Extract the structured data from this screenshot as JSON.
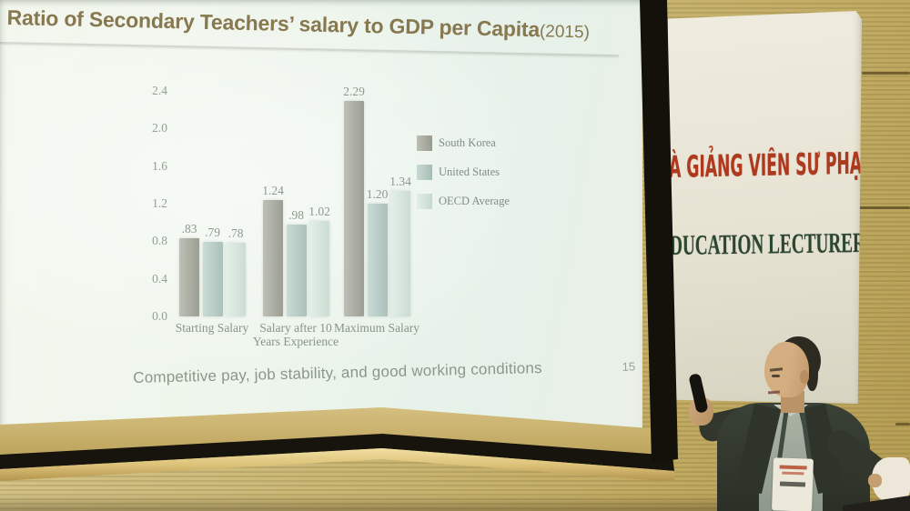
{
  "slide": {
    "title": "Ratio of Secondary Teachers’ salary to GDP per Capita",
    "title_year": "(2015)",
    "title_color": "#877850",
    "caption": "Competitive pay, job stability, and good working conditions",
    "page_number": "15"
  },
  "chart_data": {
    "type": "bar",
    "title": "Ratio of Secondary Teachers’ salary to GDP per Capita (2015)",
    "categories": [
      "Starting Salary",
      "Salary after 10\nYears Experience",
      "Maximum Salary"
    ],
    "series": [
      {
        "name": "South Korea",
        "values": [
          0.83,
          1.24,
          2.29
        ],
        "value_labels": [
          ".83",
          "1.24",
          "2.29"
        ],
        "color": "#a5a89b"
      },
      {
        "name": "United States",
        "values": [
          0.79,
          0.98,
          1.2
        ],
        "value_labels": [
          ".79",
          ".98",
          "1.20"
        ],
        "color": "#b6cdc6"
      },
      {
        "name": "OECD Average",
        "values": [
          0.78,
          1.02,
          1.34
        ],
        "value_labels": [
          ".78",
          "1.02",
          "1.34"
        ],
        "color": "#d8eae0"
      }
    ],
    "y_ticks": [
      2.4,
      2.0,
      1.6,
      1.2,
      0.8,
      0.4,
      0.0
    ],
    "y_tick_labels": [
      "2.4",
      "2.0",
      "1.6",
      "1.2",
      "0.8",
      "0.4",
      "0.0"
    ],
    "ylim": [
      0,
      2.4
    ],
    "grid": false,
    "legend_position": "right",
    "text_color": "#8d9a8f"
  },
  "banner": {
    "line1": "À GIẢNG VIÊN SƯ PHẠM",
    "line2": "DUCATION LECTURERS",
    "line1_color": "#ad3a1f",
    "line2_color": "#2c4731"
  },
  "scene": {
    "wall_color": "#c8b372",
    "screen_rail_color": "#d9c078",
    "screen_frame_color": "#131109",
    "presenter": {
      "jacket": "#343b30",
      "shirt": "#9aa496",
      "skin": "#cca77a",
      "badge": "#ebe7d9"
    }
  }
}
